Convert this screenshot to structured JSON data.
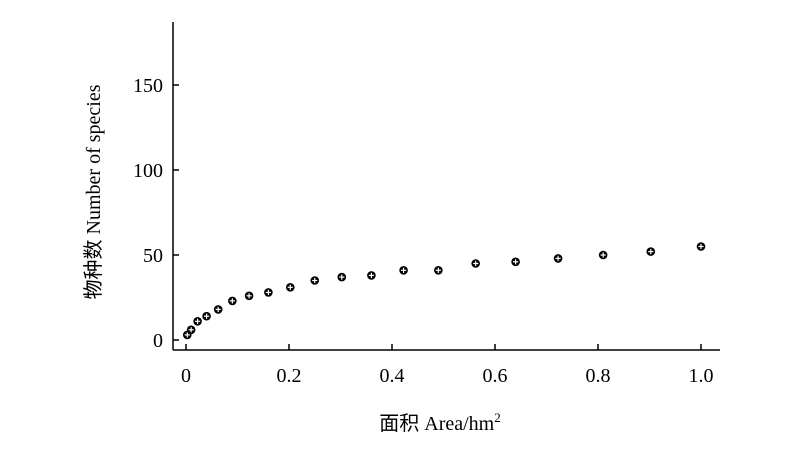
{
  "chart_data": {
    "type": "scatter",
    "title": "",
    "xlabel": "面积 Area/hm",
    "xlabel_superscript": "2",
    "ylabel": "物种数 Number of species",
    "xlim": [
      0,
      1.0
    ],
    "ylim": [
      0,
      180
    ],
    "xticks": [
      "0",
      "0.2",
      "0.4",
      "0.6",
      "0.8",
      "1.0"
    ],
    "yticks": [
      "0",
      "50",
      "100",
      "150"
    ],
    "xtick_values": [
      0,
      0.2,
      0.4,
      0.6,
      0.8,
      1.0
    ],
    "ytick_values": [
      0,
      50,
      100,
      150
    ],
    "grid": false,
    "legend": "none",
    "marker_color": "#000000",
    "series": [
      {
        "x": [
          0.0025,
          0.01,
          0.0225,
          0.04,
          0.0625,
          0.09,
          0.1225,
          0.16,
          0.2025,
          0.25,
          0.3025,
          0.36,
          0.4225,
          0.49,
          0.5625,
          0.64,
          0.7225,
          0.81,
          0.9025,
          1.0
        ],
        "y": [
          3,
          6,
          11,
          14,
          18,
          23,
          26,
          28,
          31,
          35,
          37,
          38,
          41,
          41,
          45,
          46,
          48,
          50,
          52,
          55
        ]
      }
    ]
  }
}
